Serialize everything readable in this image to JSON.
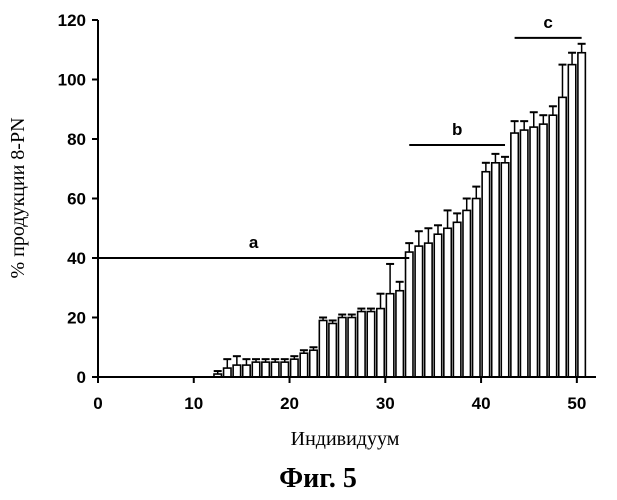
{
  "chart_data": {
    "type": "bar",
    "title": "",
    "caption": "Фиг. 5",
    "xlabel": "Индивидуум",
    "ylabel": "% продукции 8-PN",
    "xlim": [
      0,
      52
    ],
    "ylim": [
      0,
      120
    ],
    "xticks": [
      0,
      10,
      20,
      30,
      40,
      50
    ],
    "yticks": [
      0,
      20,
      40,
      60,
      80,
      100,
      120
    ],
    "grid": false,
    "error_bars": true,
    "x": [
      1,
      2,
      3,
      4,
      5,
      6,
      7,
      8,
      9,
      10,
      11,
      12,
      13,
      14,
      15,
      16,
      17,
      18,
      19,
      20,
      21,
      22,
      23,
      24,
      25,
      26,
      27,
      28,
      29,
      30,
      31,
      32,
      33,
      34,
      35,
      36,
      37,
      38,
      39,
      40,
      41,
      42,
      43,
      44,
      45,
      46,
      47,
      48,
      49,
      50,
      51
    ],
    "values": [
      0,
      0,
      0,
      0,
      0,
      0,
      0,
      0,
      0,
      0,
      0,
      0,
      1,
      3,
      4,
      4,
      5,
      5,
      5,
      5,
      6,
      8,
      9,
      19,
      18,
      20,
      20,
      22,
      22,
      23,
      28,
      29,
      42,
      44,
      45,
      48,
      50,
      52,
      56,
      60,
      69,
      72,
      72,
      82,
      83,
      84,
      85,
      88,
      94,
      105,
      109
    ],
    "errors": [
      0,
      0,
      0,
      0,
      0,
      0,
      0,
      0,
      0,
      0,
      0,
      0,
      1,
      3,
      3,
      2,
      1,
      1,
      1,
      1,
      1,
      1,
      1,
      1,
      1,
      1,
      1,
      1,
      1,
      5,
      10,
      3,
      3,
      5,
      5,
      3,
      6,
      3,
      4,
      4,
      3,
      3,
      2,
      4,
      3,
      5,
      3,
      3,
      11,
      4,
      3
    ],
    "regions": [
      {
        "label": "a",
        "y": 40,
        "x_start": 0,
        "x_end": 32.5
      },
      {
        "label": "b",
        "y": 78,
        "x_start": 32.5,
        "x_end": 42.5
      },
      {
        "label": "c",
        "y": 114,
        "x_start": 43.5,
        "x_end": 50.5
      }
    ]
  }
}
